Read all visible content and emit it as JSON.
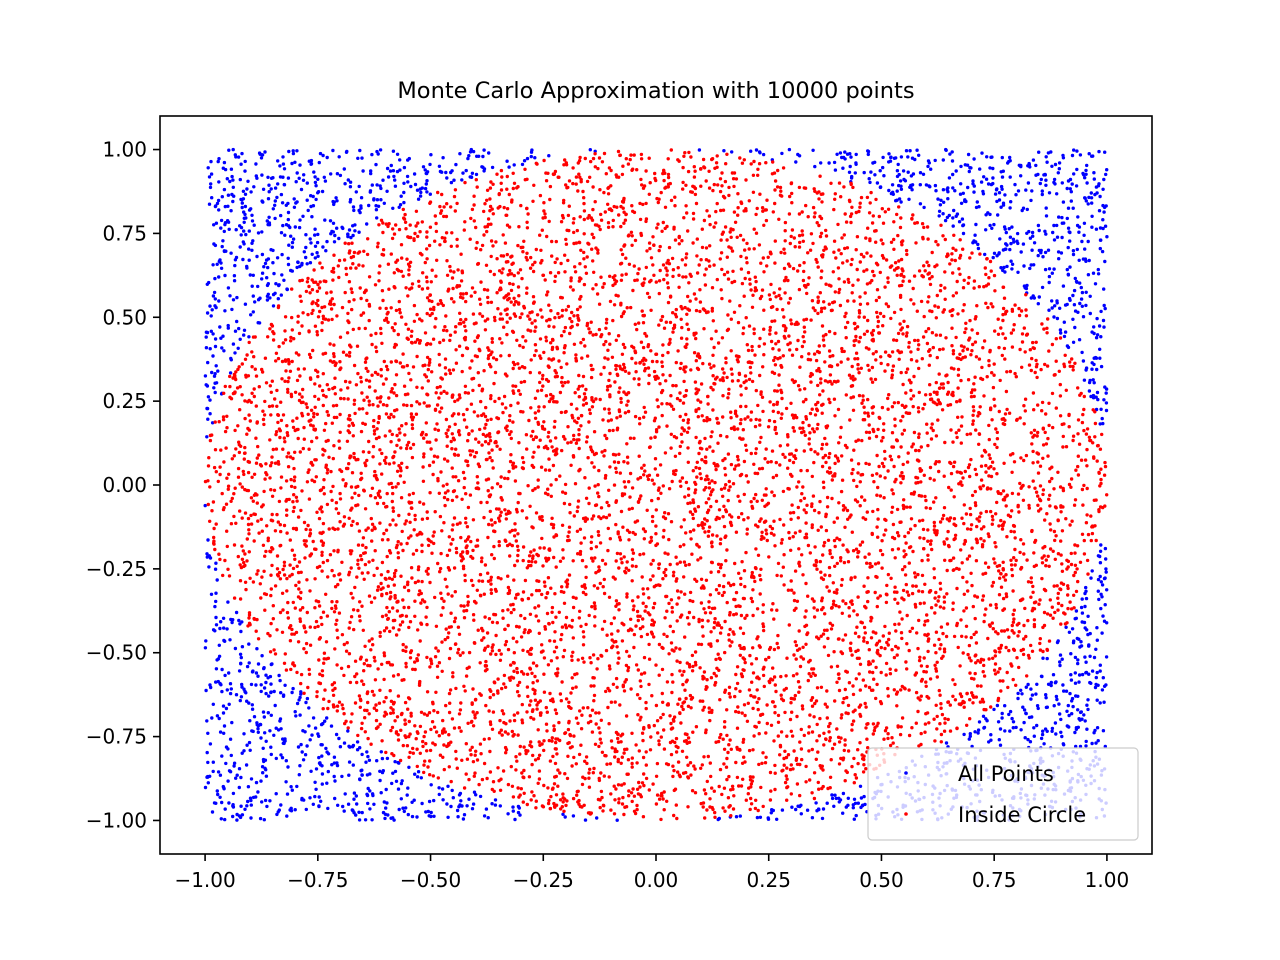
{
  "chart_data": {
    "type": "scatter",
    "title": "Monte Carlo Approximation with 10000 points",
    "xlabel": "",
    "ylabel": "",
    "xlim": [
      -1.1,
      1.1
    ],
    "ylim": [
      -1.1,
      1.1
    ],
    "x_ticks": [
      -1.0,
      -0.75,
      -0.5,
      -0.25,
      0.0,
      0.25,
      0.5,
      0.75,
      1.0
    ],
    "y_ticks": [
      -1.0,
      -0.75,
      -0.5,
      -0.25,
      0.0,
      0.25,
      0.5,
      0.75,
      1.0
    ],
    "x_tick_labels": [
      "−1.00",
      "−0.75",
      "−0.50",
      "−0.25",
      "0.00",
      "0.25",
      "0.50",
      "0.75",
      "1.00"
    ],
    "y_tick_labels": [
      "−1.00",
      "−0.75",
      "−0.50",
      "−0.25",
      "0.00",
      "0.25",
      "0.50",
      "0.75",
      "1.00"
    ],
    "grid": false,
    "legend_position": "lower right",
    "n_points": 10000,
    "series": [
      {
        "name": "All Points",
        "color": "#0000ff",
        "marker": "dot",
        "description": "uniform random points in the square [-1, 1] x [-1, 1]; only those outside the unit circle remain visible (blue)"
      },
      {
        "name": "Inside Circle",
        "color": "#ff0000",
        "marker": "dot",
        "description": "subset of points with x^2 + y^2 <= 1, drawn on top (red)"
      }
    ]
  }
}
